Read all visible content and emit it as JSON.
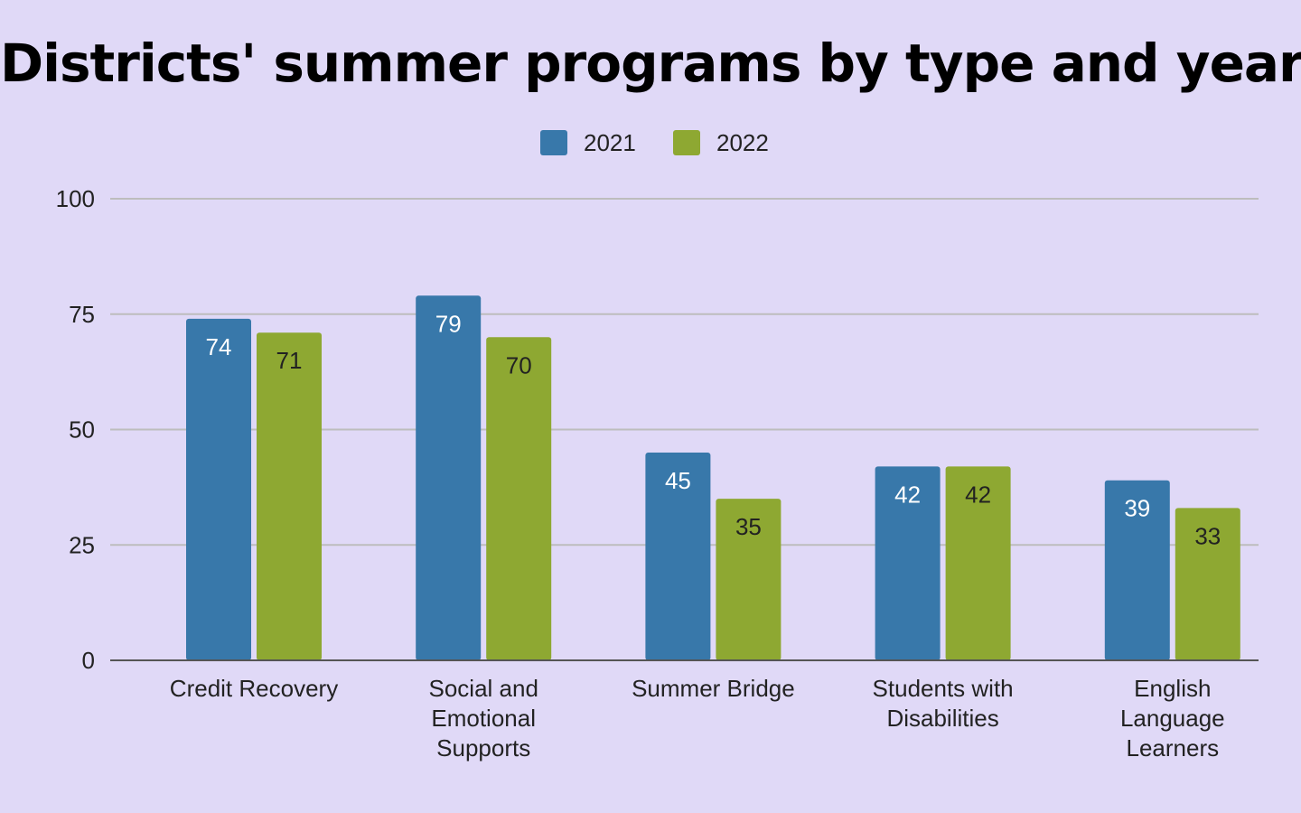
{
  "colors": {
    "background": "#e0d9f7",
    "series_2021": "#3878aa",
    "series_2022": "#8ea832",
    "gridline": "#bdbdbd",
    "axis": "#555555",
    "label_on_2021": "#ffffff",
    "label_on_2022": "#222222"
  },
  "chart_data": {
    "type": "bar",
    "title": "Districts' summer programs by type and year",
    "xlabel": "",
    "ylabel": "",
    "ylim": [
      0,
      100
    ],
    "yticks": [
      0,
      25,
      50,
      75,
      100
    ],
    "grid": true,
    "legend_position": "top-center",
    "categories": [
      "Credit Recovery",
      "Social and Emotional Supports",
      "Summer Bridge",
      "Students with Disabilities",
      "English Language Learners"
    ],
    "category_label_lines": [
      [
        "Credit Recovery"
      ],
      [
        "Social and",
        "Emotional",
        "Supports"
      ],
      [
        "Summer Bridge"
      ],
      [
        "Students with",
        "Disabilities"
      ],
      [
        "English",
        "Language",
        "Learners"
      ]
    ],
    "series": [
      {
        "name": "2021",
        "values": [
          74,
          79,
          45,
          42,
          39
        ]
      },
      {
        "name": "2022",
        "values": [
          71,
          70,
          35,
          42,
          33
        ]
      }
    ]
  }
}
